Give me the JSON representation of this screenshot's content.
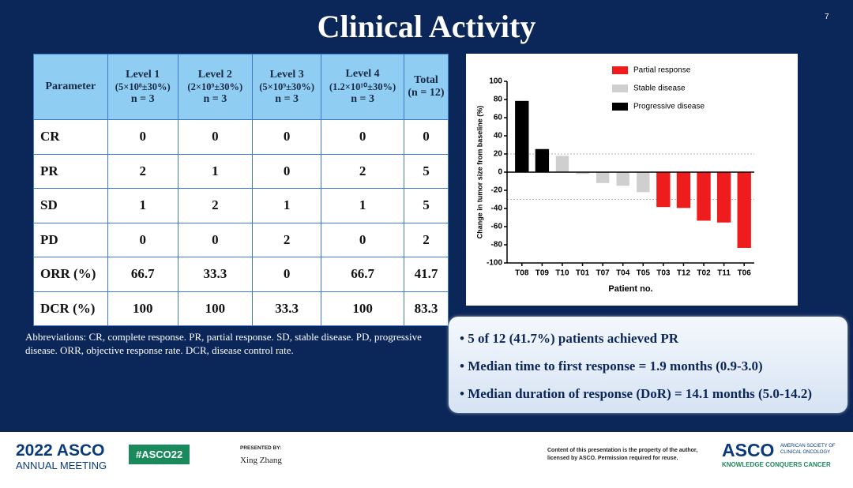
{
  "header": {
    "title": "Clinical Activity",
    "page_number": "7"
  },
  "table": {
    "columns": [
      [
        "Parameter"
      ],
      [
        "Level 1",
        "(5×10⁸±30%)",
        "n = 3"
      ],
      [
        "Level 2",
        "(2×10⁹±30%)",
        "n = 3"
      ],
      [
        "Level 3",
        "(5×10⁹±30%)",
        "n = 3"
      ],
      [
        "Level 4",
        "(1.2×10¹⁰±30%)",
        "n = 3"
      ],
      [
        "Total",
        "(n = 12)"
      ]
    ],
    "rows": [
      [
        "CR",
        0,
        0,
        0,
        0,
        0
      ],
      [
        "PR",
        2,
        1,
        0,
        2,
        5
      ],
      [
        "SD",
        1,
        2,
        1,
        1,
        5
      ],
      [
        "PD",
        0,
        0,
        2,
        0,
        2
      ],
      [
        "ORR (%)",
        66.7,
        33.3,
        0,
        66.7,
        41.7
      ],
      [
        "DCR (%)",
        100,
        100,
        33.3,
        100,
        83.3
      ]
    ]
  },
  "abbreviations": "Abbreviations: CR, complete response. PR, partial response. SD, stable disease. PD, progressive disease. ORR, objective response rate. DCR, disease control rate.",
  "chart_data": {
    "type": "bar",
    "x_label": "Patient no.",
    "y_label": "Change in tumor size from baseline (%)",
    "categories": [
      "T08",
      "T09",
      "T10",
      "T01",
      "T07",
      "T04",
      "T05",
      "T03",
      "T12",
      "T02",
      "T11",
      "T06"
    ],
    "series": [
      {
        "name": "Partial response",
        "color": "#ee1c1c",
        "values": [
          null,
          null,
          null,
          null,
          null,
          null,
          null,
          -38,
          -39,
          -53,
          -55,
          -83
        ]
      },
      {
        "name": "Stable disease",
        "color": "#cfcfcf",
        "values": [
          null,
          null,
          18,
          -2,
          -12,
          -15,
          -22,
          null,
          null,
          null,
          null,
          null
        ]
      },
      {
        "name": "Progressive disease",
        "color": "#000000",
        "values": [
          78,
          25,
          null,
          null,
          null,
          null,
          null,
          null,
          null,
          null,
          null,
          null
        ]
      }
    ],
    "reference_lines": [
      20,
      -30
    ],
    "ylim": [
      -100,
      100
    ],
    "yticks": [
      -100,
      -80,
      -60,
      -40,
      -20,
      0,
      20,
      40,
      60,
      80,
      100
    ],
    "legend": "top-right"
  },
  "bullets": [
    "5 of 12 (41.7%) patients achieved PR",
    "Median time to first response = 1.9 months (0.9-3.0)",
    "Median duration of response (DoR) = 14.1 months (5.0-14.2)"
  ],
  "footer": {
    "meeting": "2022 ASCO",
    "meeting_sub": "ANNUAL MEETING",
    "hashtag": "#ASCO22",
    "presented_by": "PRESENTED BY:",
    "presenter": "Xing Zhang",
    "disclaimer": "Content of this presentation is the property of the author, licensed by ASCO. Permission required for reuse.",
    "org": "ASCO",
    "org_full": "AMERICAN SOCIETY OF CLINICAL ONCOLOGY",
    "tagline": "KNOWLEDGE CONQUERS CANCER"
  }
}
